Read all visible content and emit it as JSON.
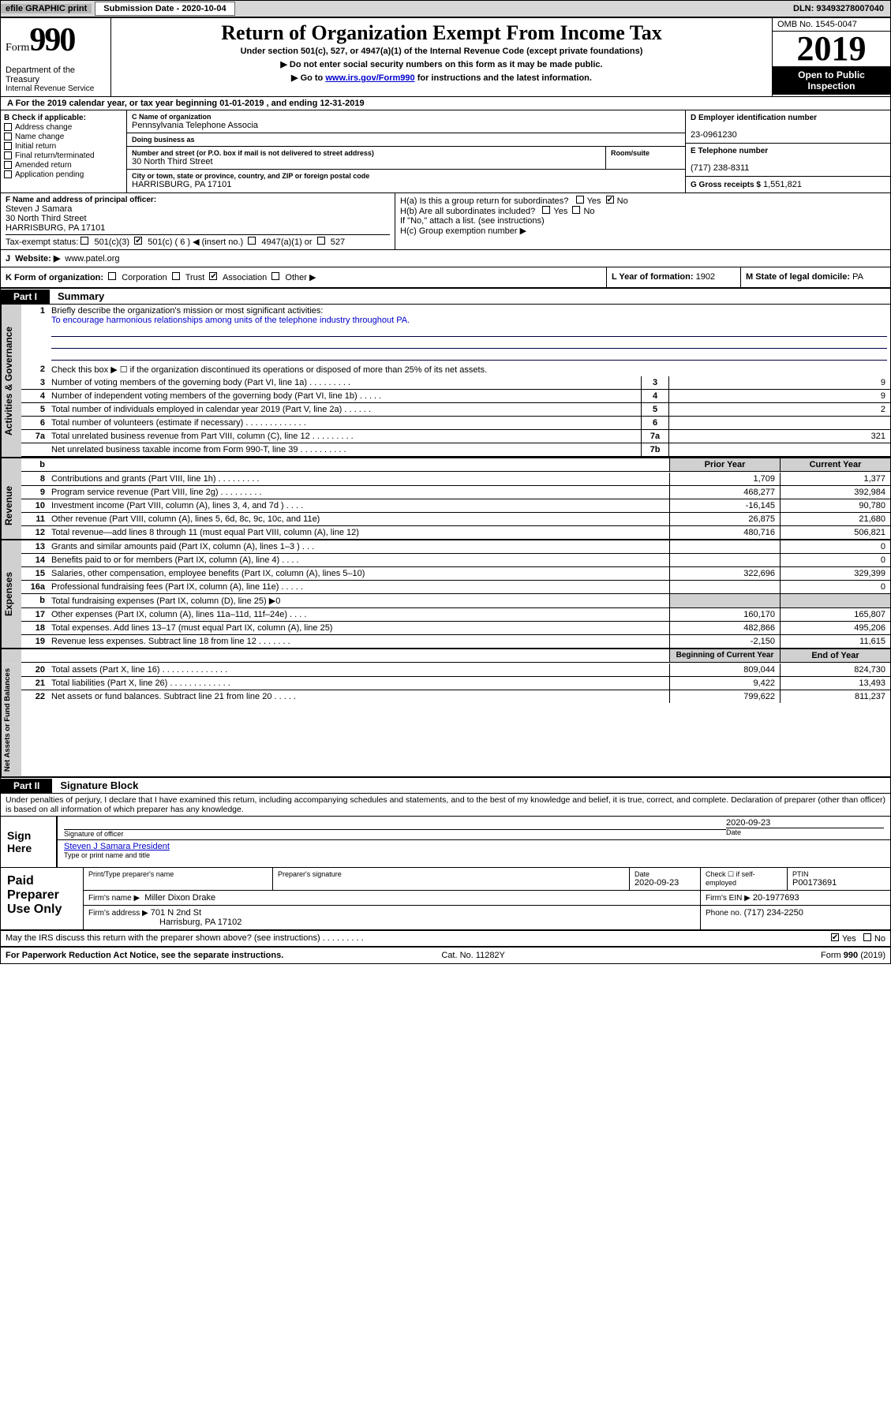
{
  "topbar": {
    "efile": "efile GRAPHIC print",
    "submission_label": "Submission Date - 2020-10-04",
    "dln": "DLN: 93493278007040"
  },
  "header": {
    "form_word": "Form",
    "form_num": "990",
    "title": "Return of Organization Exempt From Income Tax",
    "sub": "Under section 501(c), 527, or 4947(a)(1) of the Internal Revenue Code (except private foundations)",
    "arrow1": "▶ Do not enter social security numbers on this form as it may be made public.",
    "arrow2_pre": "▶ Go to ",
    "arrow2_link": "www.irs.gov/Form990",
    "arrow2_post": " for instructions and the latest information.",
    "dept": "Department of the Treasury",
    "irs": "Internal Revenue Service",
    "omb": "OMB No. 1545-0047",
    "year": "2019",
    "open": "Open to Public Inspection"
  },
  "lineA": "A  For the 2019 calendar year, or tax year beginning 01-01-2019    , and ending 12-31-2019",
  "boxB": {
    "label": "B Check if applicable:",
    "items": [
      "Address change",
      "Name change",
      "Initial return",
      "Final return/terminated",
      "Amended return",
      "Application pending"
    ]
  },
  "boxC": {
    "name_lbl": "C Name of organization",
    "name": "Pennsylvania Telephone Associa",
    "dba_lbl": "Doing business as",
    "dba": "",
    "addr_lbl": "Number and street (or P.O. box if mail is not delivered to street address)",
    "room_lbl": "Room/suite",
    "addr": "30 North Third Street",
    "city_lbl": "City or town, state or province, country, and ZIP or foreign postal code",
    "city": "HARRISBURG, PA  17101"
  },
  "boxD": {
    "lbl": "D Employer identification number",
    "val": "23-0961230"
  },
  "boxE": {
    "lbl": "E Telephone number",
    "val": "(717) 238-8311"
  },
  "boxG": {
    "lbl": "G Gross receipts $",
    "val": "1,551,821"
  },
  "boxF": {
    "lbl": "F  Name and address of principal officer:",
    "name": "Steven J Samara",
    "addr": "30 North Third Street",
    "city": "HARRISBURG, PA  17101"
  },
  "boxH": {
    "ha": "H(a)  Is this a group return for subordinates?",
    "hb": "H(b)  Are all subordinates included?",
    "hb2": "If \"No,\" attach a list. (see instructions)",
    "hc": "H(c)  Group exemption number ▶",
    "yes": "Yes",
    "no": "No"
  },
  "taxexempt": {
    "lbl": "Tax-exempt status:",
    "c3": "501(c)(3)",
    "c": "501(c) ( 6 ) ◀ (insert no.)",
    "a1": "4947(a)(1) or",
    "s527": "527"
  },
  "boxJ": {
    "lbl": "J",
    "text": "Website: ▶",
    "val": "www.patel.org"
  },
  "boxK": {
    "lbl": "K Form of organization:",
    "corp": "Corporation",
    "trust": "Trust",
    "assoc": "Association",
    "other": "Other ▶"
  },
  "boxL": {
    "lbl": "L Year of formation:",
    "val": "1902"
  },
  "boxM": {
    "lbl": "M State of legal domicile:",
    "val": "PA"
  },
  "part1": {
    "tab": "Part I",
    "title": "Summary"
  },
  "summary": {
    "q1": "Briefly describe the organization's mission or most significant activities:",
    "mission": "To encourage harmonious relationships among units of the telephone industry throughout PA.",
    "q2": "Check this box ▶ ☐ if the organization discontinued its operations or disposed of more than 25% of its net assets.",
    "rows_single": [
      {
        "n": "3",
        "txt": "Number of voting members of the governing body (Part VI, line 1a)   .    .    .    .    .    .    .    .    .",
        "ln": "3",
        "v": "9"
      },
      {
        "n": "4",
        "txt": "Number of independent voting members of the governing body (Part VI, line 1b)   .    .    .    .    .",
        "ln": "4",
        "v": "9"
      },
      {
        "n": "5",
        "txt": "Total number of individuals employed in calendar year 2019 (Part V, line 2a)   .    .    .    .    .    .",
        "ln": "5",
        "v": "2"
      },
      {
        "n": "6",
        "txt": "Total number of volunteers (estimate if necessary)   .    .    .    .    .    .    .    .    .    .    .    .    .",
        "ln": "6",
        "v": ""
      },
      {
        "n": "7a",
        "txt": "Total unrelated business revenue from Part VIII, column (C), line 12   .    .    .    .    .    .    .    .    .",
        "ln": "7a",
        "v": "321"
      },
      {
        "n": "",
        "txt": "Net unrelated business taxable income from Form 990-T, line 39   .    .    .    .    .    .    .    .    .    .",
        "ln": "7b",
        "v": ""
      }
    ],
    "hdr_b": "b",
    "hdr_prior": "Prior Year",
    "hdr_curr": "Current Year",
    "revenue": [
      {
        "n": "8",
        "txt": "Contributions and grants (Part VIII, line 1h)   .    .    .    .    .    .    .    .    .",
        "p": "1,709",
        "c": "1,377"
      },
      {
        "n": "9",
        "txt": "Program service revenue (Part VIII, line 2g)   .    .    .    .    .    .    .    .    .",
        "p": "468,277",
        "c": "392,984"
      },
      {
        "n": "10",
        "txt": "Investment income (Part VIII, column (A), lines 3, 4, and 7d )   .    .    .    .",
        "p": "-16,145",
        "c": "90,780"
      },
      {
        "n": "11",
        "txt": "Other revenue (Part VIII, column (A), lines 5, 6d, 8c, 9c, 10c, and 11e)",
        "p": "26,875",
        "c": "21,680"
      },
      {
        "n": "12",
        "txt": "Total revenue—add lines 8 through 11 (must equal Part VIII, column (A), line 12)",
        "p": "480,716",
        "c": "506,821"
      }
    ],
    "expenses": [
      {
        "n": "13",
        "txt": "Grants and similar amounts paid (Part IX, column (A), lines 1–3 )   .    .    .",
        "p": "",
        "c": "0"
      },
      {
        "n": "14",
        "txt": "Benefits paid to or for members (Part IX, column (A), line 4)   .    .    .    .",
        "p": "",
        "c": "0"
      },
      {
        "n": "15",
        "txt": "Salaries, other compensation, employee benefits (Part IX, column (A), lines 5–10)",
        "p": "322,696",
        "c": "329,399"
      },
      {
        "n": "16a",
        "txt": "Professional fundraising fees (Part IX, column (A), line 11e)   .    .    .    .    .",
        "p": "",
        "c": "0"
      },
      {
        "n": "b",
        "txt": "Total fundraising expenses (Part IX, column (D), line 25) ▶0",
        "p": "GRAY",
        "c": "GRAY"
      },
      {
        "n": "17",
        "txt": "Other expenses (Part IX, column (A), lines 11a–11d, 11f–24e)   .    .    .    .",
        "p": "160,170",
        "c": "165,807"
      },
      {
        "n": "18",
        "txt": "Total expenses. Add lines 13–17 (must equal Part IX, column (A), line 25)",
        "p": "482,866",
        "c": "495,206"
      },
      {
        "n": "19",
        "txt": "Revenue less expenses. Subtract line 18 from line 12   .    .    .    .    .    .    .",
        "p": "-2,150",
        "c": "11,615"
      }
    ],
    "hdr_beg": "Beginning of Current Year",
    "hdr_end": "End of Year",
    "netassets": [
      {
        "n": "20",
        "txt": "Total assets (Part X, line 16)   .    .    .    .    .    .    .    .    .    .    .    .    .    .",
        "p": "809,044",
        "c": "824,730"
      },
      {
        "n": "21",
        "txt": "Total liabilities (Part X, line 26)   .    .    .    .    .    .    .    .    .    .    .    .    .",
        "p": "9,422",
        "c": "13,493"
      },
      {
        "n": "22",
        "txt": "Net assets or fund balances. Subtract line 21 from line 20   .    .    .    .    .",
        "p": "799,622",
        "c": "811,237"
      }
    ]
  },
  "sidelabels": {
    "gov": "Activities & Governance",
    "rev": "Revenue",
    "exp": "Expenses",
    "net": "Net Assets or Fund Balances"
  },
  "part2": {
    "tab": "Part II",
    "title": "Signature Block"
  },
  "sig": {
    "perjury": "Under penalties of perjury, I declare that I have examined this return, including accompanying schedules and statements, and to the best of my knowledge and belief, it is true, correct, and complete. Declaration of preparer (other than officer) is based on all information of which preparer has any knowledge.",
    "sign_here": "Sign Here",
    "sig_officer": "Signature of officer",
    "date": "2020-09-23",
    "date_lbl": "Date",
    "name": "Steven J Samara  President",
    "name_lbl": "Type or print name and title"
  },
  "paid": {
    "label": "Paid Preparer Use Only",
    "prep_name_lbl": "Print/Type preparer's name",
    "prep_sig_lbl": "Preparer's signature",
    "date_lbl": "Date",
    "date": "2020-09-23",
    "check_lbl": "Check ☐ if self-employed",
    "ptin_lbl": "PTIN",
    "ptin": "P00173691",
    "firm_name_lbl": "Firm's name     ▶",
    "firm_name": "Miller Dixon Drake",
    "firm_ein_lbl": "Firm's EIN ▶",
    "firm_ein": "20-1977693",
    "firm_addr_lbl": "Firm's address ▶",
    "firm_addr": "701 N 2nd St",
    "firm_city": "Harrisburg, PA  17102",
    "phone_lbl": "Phone no.",
    "phone": "(717) 234-2250"
  },
  "discuss": {
    "txt": "May the IRS discuss this return with the preparer shown above? (see instructions)    .    .    .    .    .    .    .    .    .",
    "yes": "Yes",
    "no": "No"
  },
  "footer": {
    "pra": "For Paperwork Reduction Act Notice, see the separate instructions.",
    "cat": "Cat. No. 11282Y",
    "form": "Form 990 (2019)"
  }
}
